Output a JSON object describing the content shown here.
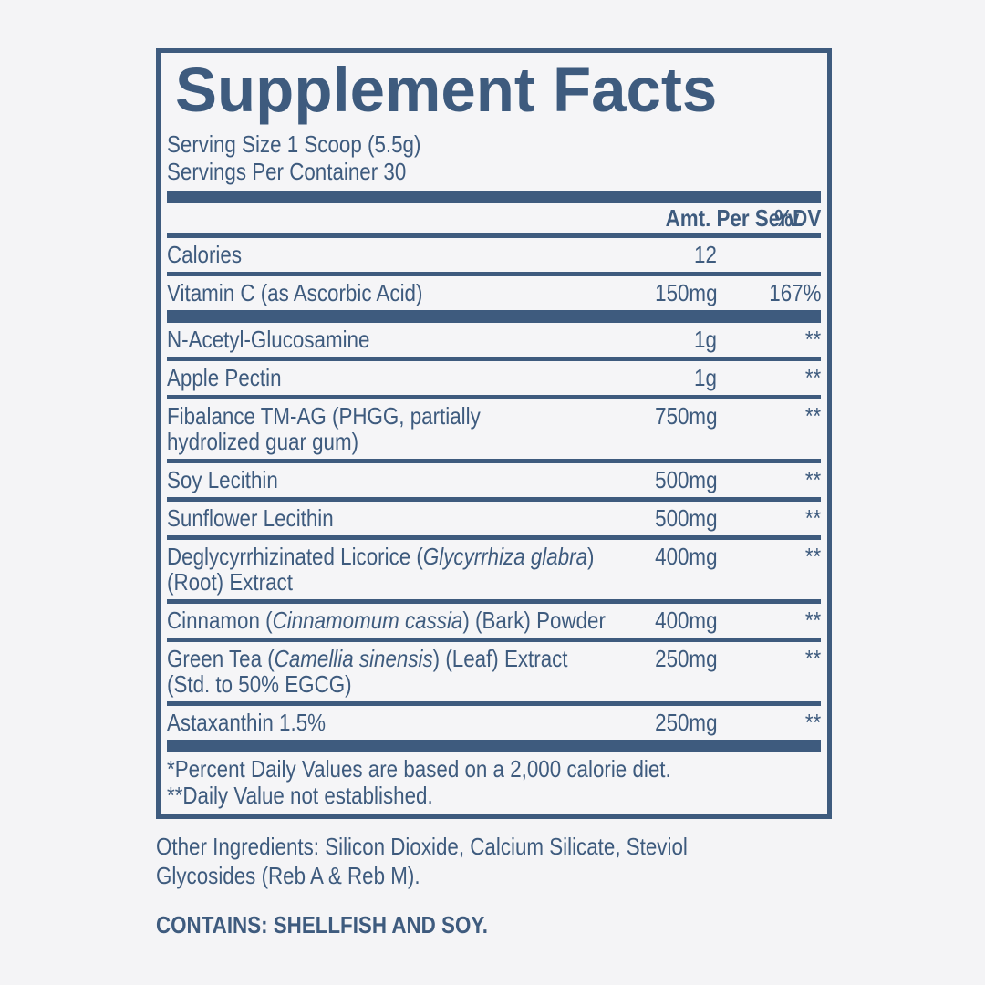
{
  "colors": {
    "ink": "#3e5b7e",
    "background": "#f4f4f6"
  },
  "panel": {
    "title": "Supplement Facts",
    "serving_size": "Serving Size 1 Scoop (5.5g)",
    "servings_per_container": "Servings Per Container 30",
    "columns": {
      "amount": "Amt. Per Serv.",
      "dv": "%DV"
    },
    "rows": [
      {
        "name_pre": "Calories",
        "name_italic": "",
        "name_post": "",
        "amount": "12",
        "dv": ""
      },
      {
        "name_pre": "Vitamin C (as Ascorbic Acid)",
        "name_italic": "",
        "name_post": "",
        "amount": "150mg",
        "dv": "167%"
      },
      {
        "name_pre": "N-Acetyl-Glucosamine",
        "name_italic": "",
        "name_post": "",
        "amount": "1g",
        "dv": "**"
      },
      {
        "name_pre": "Apple Pectin",
        "name_italic": "",
        "name_post": "",
        "amount": "1g",
        "dv": "**"
      },
      {
        "name_pre": "Fibalance TM-AG (PHGG, partially\nhydrolized guar gum)",
        "name_italic": "",
        "name_post": "",
        "amount": "750mg",
        "dv": "**"
      },
      {
        "name_pre": "Soy Lecithin",
        "name_italic": "",
        "name_post": "",
        "amount": "500mg",
        "dv": "**"
      },
      {
        "name_pre": "Sunflower Lecithin",
        "name_italic": "",
        "name_post": "",
        "amount": "500mg",
        "dv": "**"
      },
      {
        "name_pre": "Deglycyrrhizinated Licorice (",
        "name_italic": "Glycyrrhiza glabra",
        "name_post": ")\n(Root) Extract",
        "amount": "400mg",
        "dv": "**"
      },
      {
        "name_pre": "Cinnamon (",
        "name_italic": "Cinnamomum cassia",
        "name_post": ") (Bark) Powder",
        "amount": "400mg",
        "dv": "**"
      },
      {
        "name_pre": "Green Tea (",
        "name_italic": "Camellia sinensis",
        "name_post": ") (Leaf) Extract\n(Std. to 50% EGCG)",
        "amount": "250mg",
        "dv": "**"
      },
      {
        "name_pre": "Astaxanthin 1.5%",
        "name_italic": "",
        "name_post": "",
        "amount": "250mg",
        "dv": "**"
      }
    ],
    "footnotes": {
      "daily_values": "*Percent Daily Values are based on a 2,000 calorie diet.",
      "not_established": "**Daily Value not established."
    }
  },
  "below_panel": {
    "other_ingredients": "Other Ingredients: Silicon Dioxide, Calcium Silicate, Steviol\nGlycosides (Reb A & Reb M).",
    "contains": "CONTAINS: SHELLFISH AND SOY."
  }
}
